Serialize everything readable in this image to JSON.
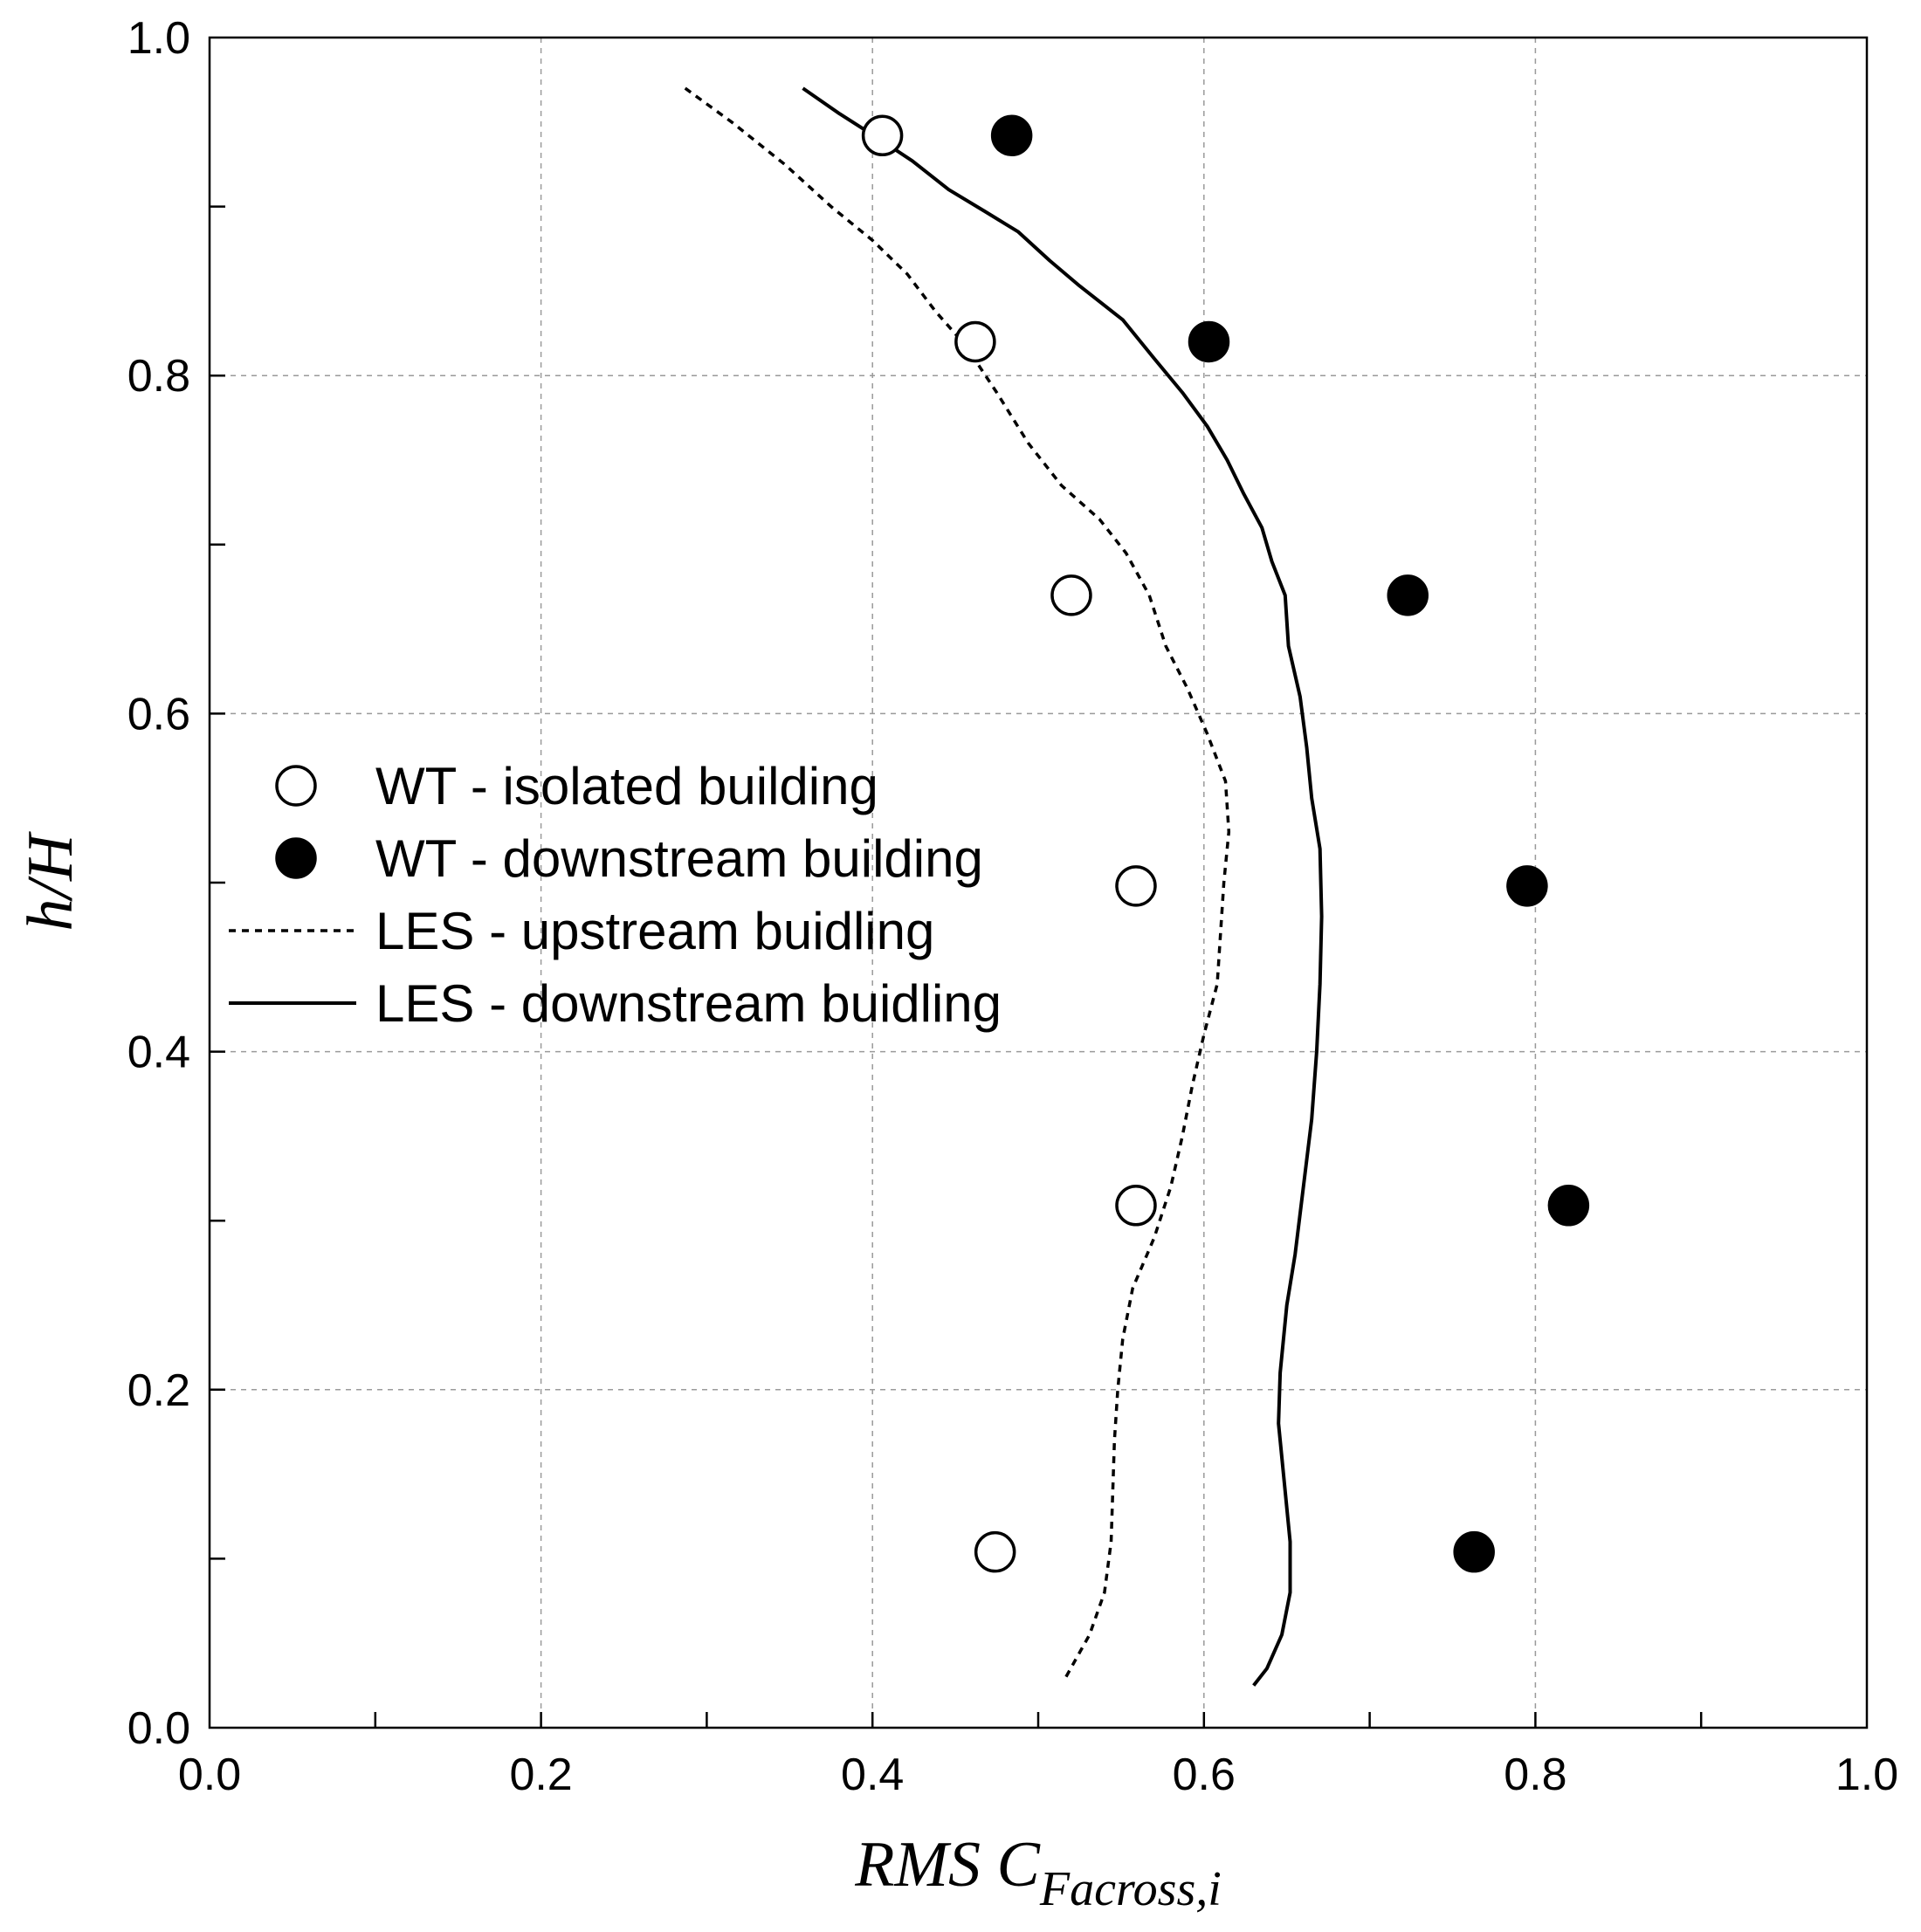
{
  "chart_data": {
    "type": "scatter",
    "xlabel": {
      "main": "RMS C",
      "subscript": "Facross,i"
    },
    "ylabel": "h/H",
    "xlim": [
      0,
      1
    ],
    "ylim": [
      0,
      1
    ],
    "grid": true,
    "x_ticks": [
      "0.0",
      "0.2",
      "0.4",
      "0.6",
      "0.8",
      "1.0"
    ],
    "y_ticks": [
      "0.0",
      "0.2",
      "0.4",
      "0.6",
      "0.8",
      "1.0"
    ],
    "legend_position": "left-middle",
    "series": [
      {
        "name": "WT - isolated building",
        "kind": "marker-open",
        "points": [
          [
            0.406,
            0.942
          ],
          [
            0.462,
            0.82
          ],
          [
            0.52,
            0.67
          ],
          [
            0.559,
            0.498
          ],
          [
            0.559,
            0.309
          ],
          [
            0.474,
            0.104
          ]
        ]
      },
      {
        "name": "WT - downstream building",
        "kind": "marker-filled",
        "points": [
          [
            0.484,
            0.942
          ],
          [
            0.603,
            0.82
          ],
          [
            0.723,
            0.67
          ],
          [
            0.795,
            0.498
          ],
          [
            0.82,
            0.309
          ],
          [
            0.763,
            0.104
          ]
        ]
      },
      {
        "name": "LES - upstream buidling",
        "kind": "dashed-line",
        "points": [
          [
            0.287,
            0.97
          ],
          [
            0.315,
            0.95
          ],
          [
            0.347,
            0.925
          ],
          [
            0.375,
            0.9
          ],
          [
            0.4,
            0.88
          ],
          [
            0.421,
            0.86
          ],
          [
            0.438,
            0.838
          ],
          [
            0.456,
            0.818
          ],
          [
            0.475,
            0.79
          ],
          [
            0.494,
            0.76
          ],
          [
            0.514,
            0.735
          ],
          [
            0.537,
            0.715
          ],
          [
            0.553,
            0.695
          ],
          [
            0.567,
            0.67
          ],
          [
            0.577,
            0.64
          ],
          [
            0.59,
            0.615
          ],
          [
            0.602,
            0.588
          ],
          [
            0.613,
            0.56
          ],
          [
            0.615,
            0.53
          ],
          [
            0.612,
            0.5
          ],
          [
            0.61,
            0.47
          ],
          [
            0.608,
            0.44
          ],
          [
            0.6,
            0.41
          ],
          [
            0.593,
            0.38
          ],
          [
            0.587,
            0.35
          ],
          [
            0.58,
            0.32
          ],
          [
            0.57,
            0.29
          ],
          [
            0.557,
            0.26
          ],
          [
            0.551,
            0.23
          ],
          [
            0.548,
            0.2
          ],
          [
            0.546,
            0.17
          ],
          [
            0.545,
            0.14
          ],
          [
            0.544,
            0.11
          ],
          [
            0.54,
            0.08
          ],
          [
            0.531,
            0.055
          ],
          [
            0.515,
            0.027
          ]
        ]
      },
      {
        "name": "LES - downstream buidling",
        "kind": "solid-line",
        "points": [
          [
            0.358,
            0.97
          ],
          [
            0.38,
            0.955
          ],
          [
            0.404,
            0.94
          ],
          [
            0.424,
            0.927
          ],
          [
            0.446,
            0.91
          ],
          [
            0.468,
            0.897
          ],
          [
            0.488,
            0.885
          ],
          [
            0.507,
            0.868
          ],
          [
            0.525,
            0.853
          ],
          [
            0.551,
            0.833
          ],
          [
            0.57,
            0.81
          ],
          [
            0.587,
            0.79
          ],
          [
            0.602,
            0.77
          ],
          [
            0.614,
            0.75
          ],
          [
            0.624,
            0.73
          ],
          [
            0.635,
            0.71
          ],
          [
            0.641,
            0.69
          ],
          [
            0.649,
            0.67
          ],
          [
            0.651,
            0.64
          ],
          [
            0.658,
            0.61
          ],
          [
            0.662,
            0.58
          ],
          [
            0.665,
            0.55
          ],
          [
            0.67,
            0.52
          ],
          [
            0.671,
            0.48
          ],
          [
            0.67,
            0.44
          ],
          [
            0.668,
            0.4
          ],
          [
            0.665,
            0.36
          ],
          [
            0.66,
            0.32
          ],
          [
            0.655,
            0.28
          ],
          [
            0.65,
            0.25
          ],
          [
            0.646,
            0.21
          ],
          [
            0.645,
            0.18
          ],
          [
            0.648,
            0.15
          ],
          [
            0.652,
            0.11
          ],
          [
            0.652,
            0.08
          ],
          [
            0.647,
            0.055
          ],
          [
            0.638,
            0.035
          ],
          [
            0.63,
            0.025
          ]
        ]
      }
    ]
  }
}
